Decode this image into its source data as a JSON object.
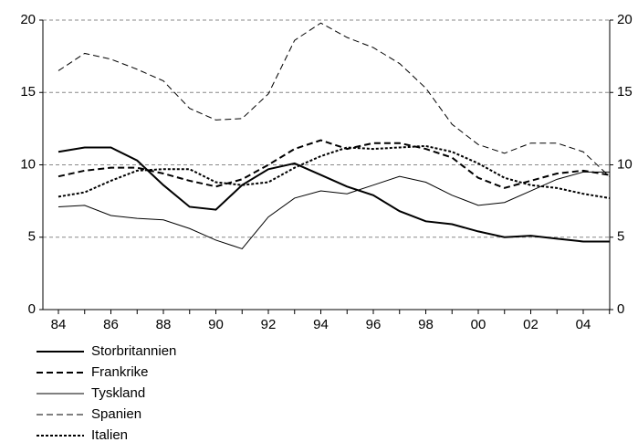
{
  "chart_data": {
    "type": "line",
    "categories": [
      "84",
      null,
      "86",
      null,
      "88",
      null,
      "90",
      null,
      "92",
      null,
      "94",
      null,
      "96",
      null,
      "98",
      null,
      "00",
      null,
      "02",
      null,
      "04",
      null
    ],
    "ylim": [
      0,
      20
    ],
    "yticks": [
      0,
      5,
      10,
      15,
      20
    ],
    "grid": true,
    "legend": "bottom-left",
    "series": [
      {
        "name": "Storbritannien",
        "color": "#000000",
        "width": 2,
        "dash": "none",
        "values": [
          10.9,
          11.2,
          11.2,
          10.3,
          8.6,
          7.1,
          6.9,
          8.6,
          9.7,
          10.1,
          9.3,
          8.5,
          7.9,
          6.8,
          6.1,
          5.9,
          5.4,
          5.0,
          5.1,
          4.9,
          4.7,
          4.7
        ]
      },
      {
        "name": "Frankrike",
        "color": "#000000",
        "width": 2,
        "dash": "7 4",
        "values": [
          9.2,
          9.6,
          9.8,
          9.8,
          9.4,
          8.9,
          8.5,
          9.0,
          10.0,
          11.1,
          11.7,
          11.1,
          11.5,
          11.5,
          11.1,
          10.5,
          9.1,
          8.4,
          8.9,
          9.4,
          9.6,
          9.3
        ]
      },
      {
        "name": "Tyskland",
        "color": "#000000",
        "width": 1,
        "dash": "none",
        "values": [
          7.1,
          7.2,
          6.5,
          6.3,
          6.2,
          5.6,
          4.8,
          4.2,
          6.4,
          7.7,
          8.2,
          8.0,
          8.6,
          9.2,
          8.8,
          7.9,
          7.2,
          7.4,
          8.2,
          9.0,
          9.5,
          9.5
        ]
      },
      {
        "name": "Spanien",
        "color": "#000000",
        "width": 1,
        "dash": "7 4",
        "values": [
          16.5,
          17.7,
          17.3,
          16.6,
          15.8,
          13.9,
          13.1,
          13.2,
          14.9,
          18.6,
          19.8,
          18.8,
          18.1,
          17.0,
          15.3,
          12.8,
          11.4,
          10.8,
          11.5,
          11.5,
          10.9,
          9.2
        ]
      },
      {
        "name": "Italien",
        "color": "#000000",
        "width": 2,
        "dash": "3 2",
        "values": [
          7.8,
          8.1,
          8.9,
          9.6,
          9.7,
          9.7,
          8.8,
          8.6,
          8.8,
          9.8,
          10.6,
          11.2,
          11.1,
          11.2,
          11.3,
          10.9,
          10.1,
          9.1,
          8.6,
          8.4,
          8.0,
          7.7
        ]
      }
    ]
  }
}
